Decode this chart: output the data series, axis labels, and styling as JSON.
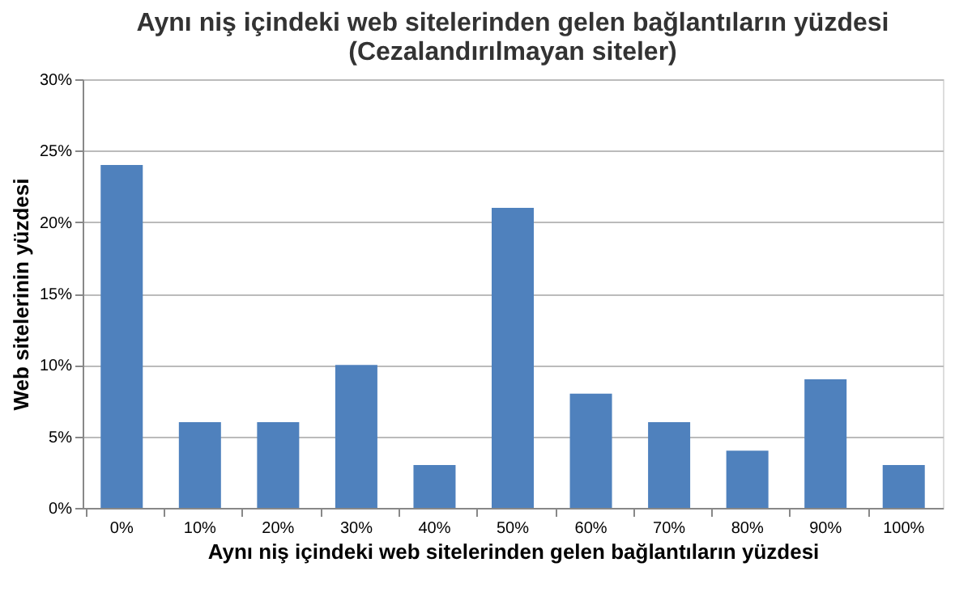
{
  "chart_data": {
    "type": "bar",
    "title": [
      "Aynı niş içindeki web sitelerinden gelen bağlantıların yüzdesi",
      "(Cezalandırılmayan siteler)"
    ],
    "xlabel": "Aynı niş içindeki web sitelerinden gelen bağlantıların yüzdesi",
    "ylabel": "Web sitelerinin yüzdesi",
    "categories": [
      "0%",
      "10%",
      "20%",
      "30%",
      "40%",
      "50%",
      "60%",
      "70%",
      "80%",
      "90%",
      "100%"
    ],
    "values": [
      24,
      6,
      6,
      10,
      3,
      21,
      8,
      6,
      4,
      9,
      3
    ],
    "color": "#4f81bd",
    "ylim": [
      0,
      30
    ],
    "yticks": [
      {
        "value": 0,
        "label": "0%"
      },
      {
        "value": 5,
        "label": "5%"
      },
      {
        "value": 10,
        "label": "10%"
      },
      {
        "value": 15,
        "label": "15%"
      },
      {
        "value": 20,
        "label": "20%"
      },
      {
        "value": 25,
        "label": "25%"
      },
      {
        "value": 30,
        "label": "30%"
      }
    ],
    "grid": "y"
  }
}
